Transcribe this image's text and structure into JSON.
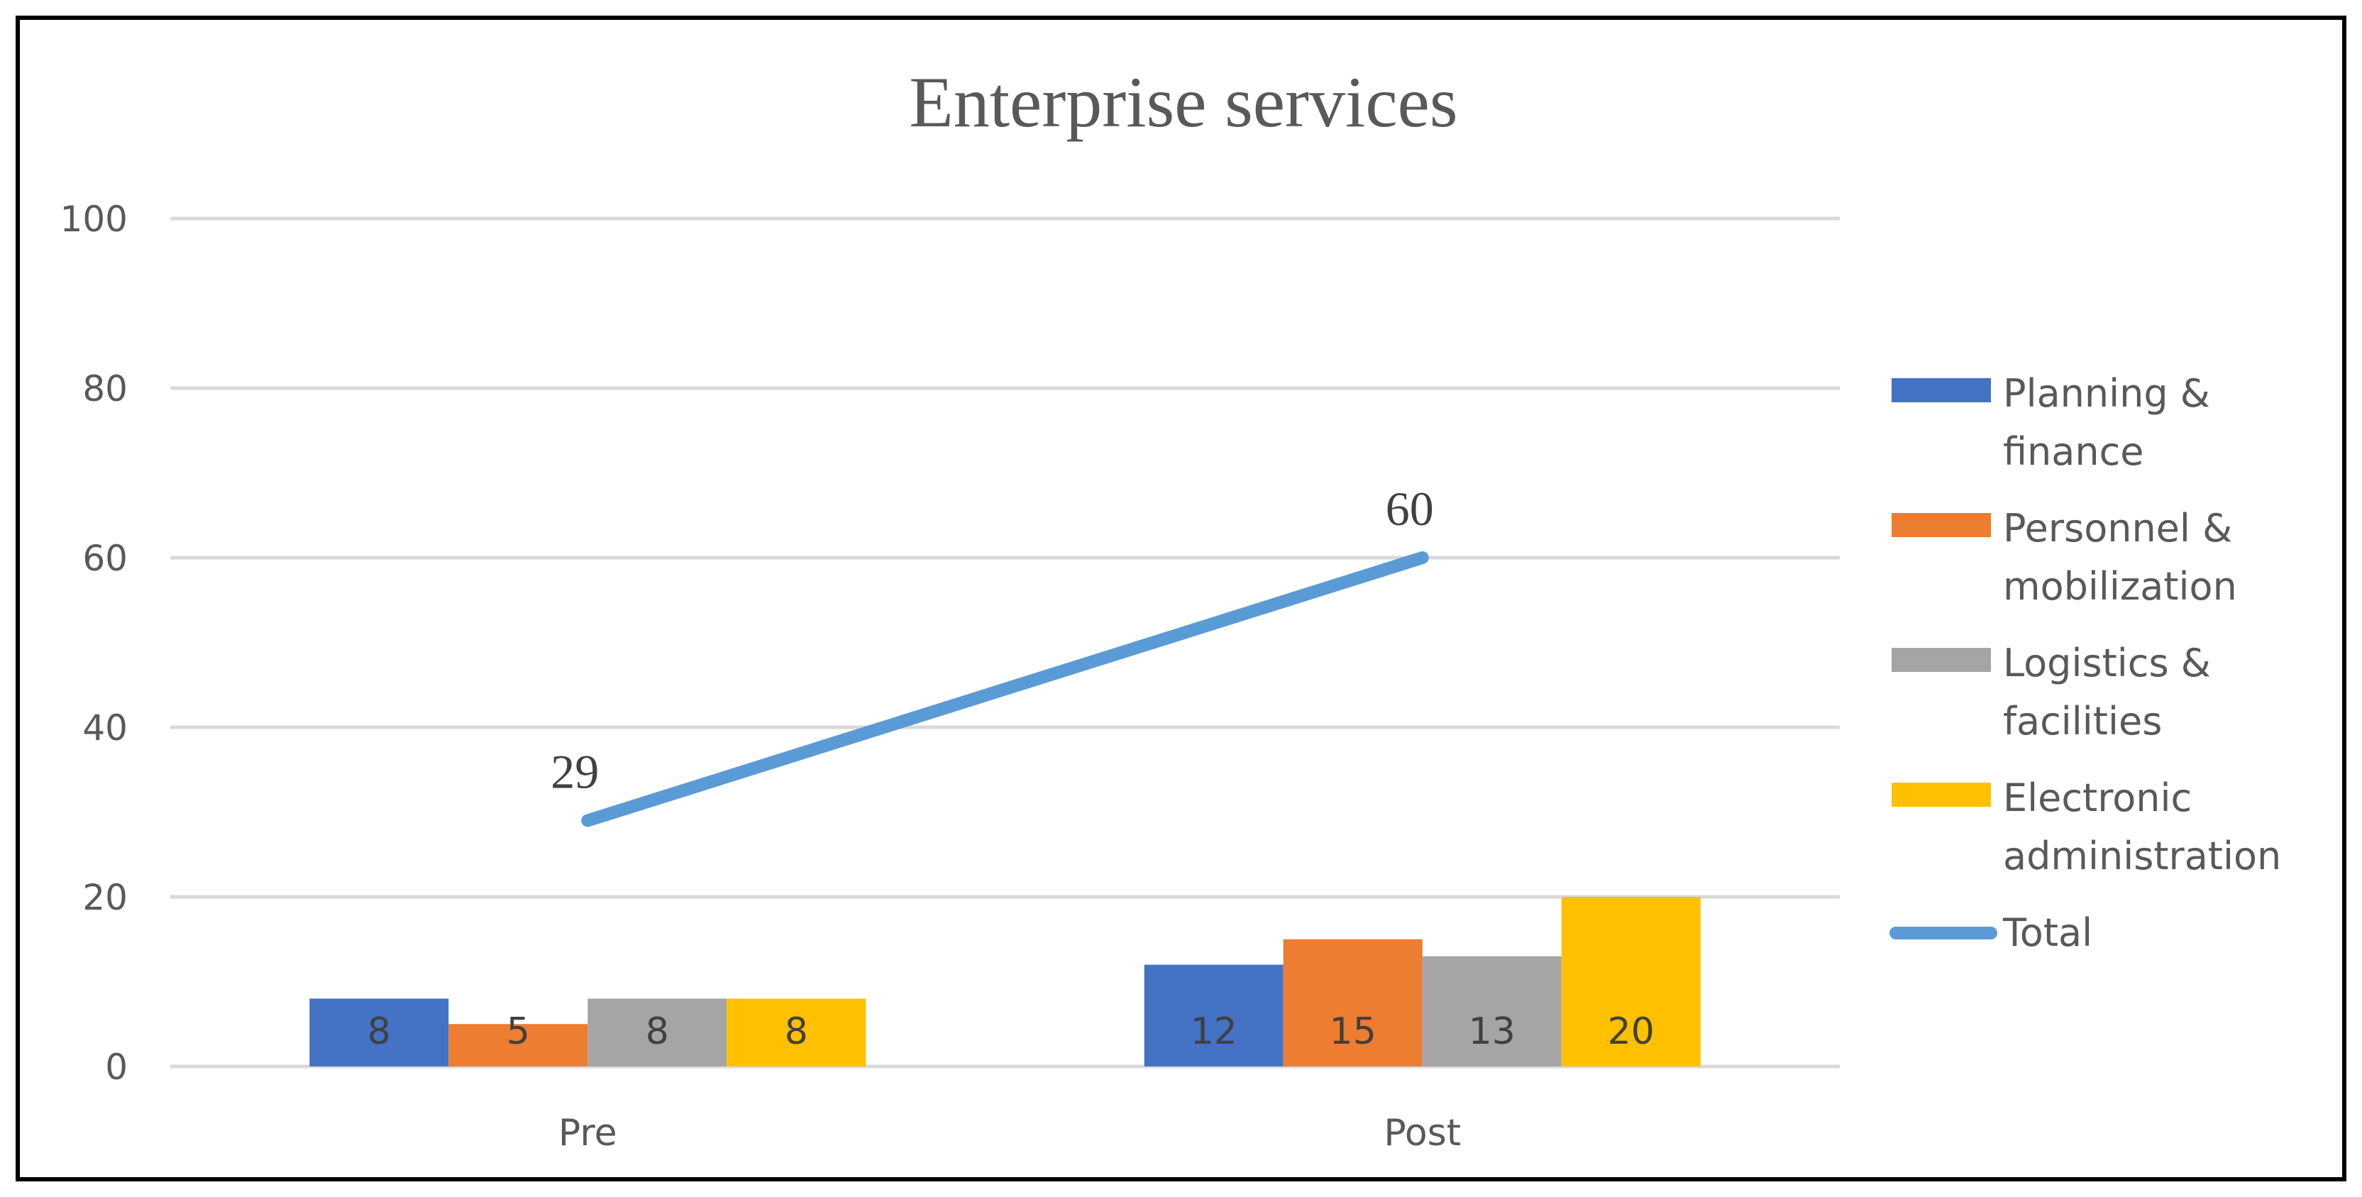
{
  "chart_data": {
    "type": "bar",
    "title": "Enterprise services",
    "xlabel": "",
    "ylabel": "",
    "ylim": [
      0,
      100
    ],
    "yticks": [
      0,
      20,
      40,
      60,
      80,
      100
    ],
    "grid": true,
    "legend_position": "right",
    "categories": [
      "Pre",
      "Post"
    ],
    "series": [
      {
        "name": "Planning & finance",
        "type": "bar",
        "color": "#4472C4",
        "values": [
          8,
          12
        ],
        "legend_lines": [
          "Planning &",
          "finance"
        ]
      },
      {
        "name": "Personnel & mobilization",
        "type": "bar",
        "color": "#ED7D31",
        "values": [
          5,
          15
        ],
        "legend_lines": [
          "Personnel &",
          "mobilization"
        ]
      },
      {
        "name": "Logistics & facilities",
        "type": "bar",
        "color": "#A5A5A5",
        "values": [
          8,
          13
        ],
        "legend_lines": [
          "Logistics &",
          "facilities"
        ]
      },
      {
        "name": "Electronic administration",
        "type": "bar",
        "color": "#FFC000",
        "values": [
          8,
          20
        ],
        "legend_lines": [
          "Electronic",
          "administration"
        ]
      },
      {
        "name": "Total",
        "type": "line",
        "color": "#5B9BD5",
        "values": [
          29,
          60
        ],
        "legend_lines": [
          "Total"
        ]
      }
    ]
  }
}
